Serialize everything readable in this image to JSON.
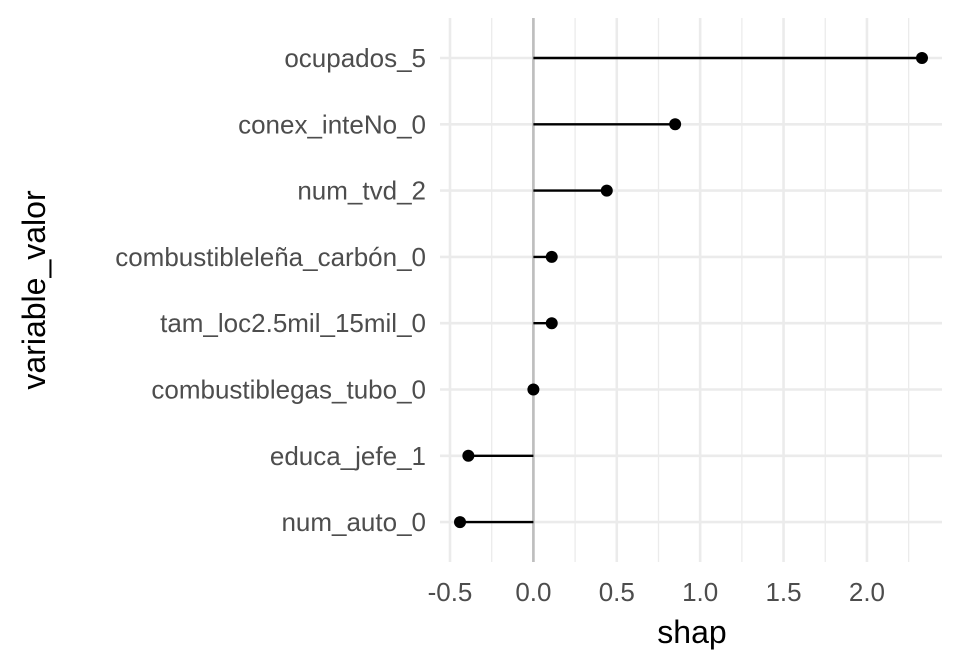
{
  "chart_data": {
    "type": "lollipop",
    "xlabel": "shap",
    "ylabel": "variable_valor",
    "xlim": [
      -0.56,
      2.45
    ],
    "x_ticks": [
      -0.5,
      0.0,
      0.5,
      1.0,
      1.5,
      2.0
    ],
    "x_tick_labels": [
      "-0.5",
      "0.0",
      "0.5",
      "1.0",
      "1.5",
      "2.0"
    ],
    "reference_line_x": 0,
    "grid": true,
    "categories": [
      "ocupados_5",
      "conex_inteNo_0",
      "num_tvd_2",
      "combustibleleña_carbón_0",
      "tam_loc2.5mil_15mil_0",
      "combustiblegas_tubo_0",
      "educa_jefe_1",
      "num_auto_0"
    ],
    "values": [
      2.33,
      0.85,
      0.44,
      0.11,
      0.11,
      0.0,
      -0.39,
      -0.44
    ]
  }
}
